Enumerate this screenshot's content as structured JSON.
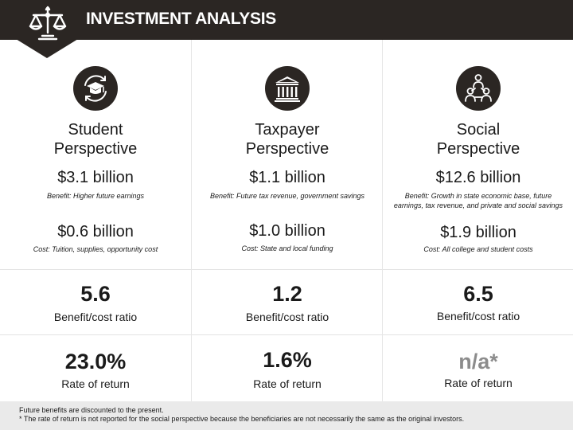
{
  "header": {
    "title": "INVESTMENT ANALYSIS",
    "icon": "scales-icon",
    "color": "#2b2623"
  },
  "columns": [
    {
      "icon": "graduation-cap-icon",
      "perspective_line1": "Student",
      "perspective_line2": "Perspective",
      "benefit_amount": "$3.1 billion",
      "benefit_note": "Benefit: Higher future earnings",
      "cost_amount": "$0.6 billion",
      "cost_note": "Cost: Tuition, supplies, opportunity cost",
      "ratio": "5.6",
      "ratio_label": "Benefit/cost ratio",
      "return": "23.0%",
      "return_label": "Rate of return"
    },
    {
      "icon": "government-building-icon",
      "perspective_line1": "Taxpayer",
      "perspective_line2": "Perspective",
      "benefit_amount": "$1.1 billion",
      "benefit_note": "Benefit: Future tax revenue, government savings",
      "cost_amount": "$1.0 billion",
      "cost_note": "Cost: State and local funding",
      "ratio": "1.2",
      "ratio_label": "Benefit/cost ratio",
      "return": "1.6%",
      "return_label": "Rate of return"
    },
    {
      "icon": "people-network-icon",
      "perspective_line1": "Social",
      "perspective_line2": "Perspective",
      "benefit_amount": "$12.6 billion",
      "benefit_note": "Benefit: Growth in state economic base, future earnings, tax revenue, and private and social savings",
      "cost_amount": "$1.9 billion",
      "cost_note": "Cost: All college and student costs",
      "ratio": "6.5",
      "ratio_label": "Benefit/cost ratio",
      "return": "n/a*",
      "return_label": "Rate of return"
    }
  ],
  "footer": {
    "line1": "Future benefits are discounted to the present.",
    "line2": "* The rate of return is not reported for the social perspective because the beneficiaries are not necessarily the same as the original investors."
  }
}
